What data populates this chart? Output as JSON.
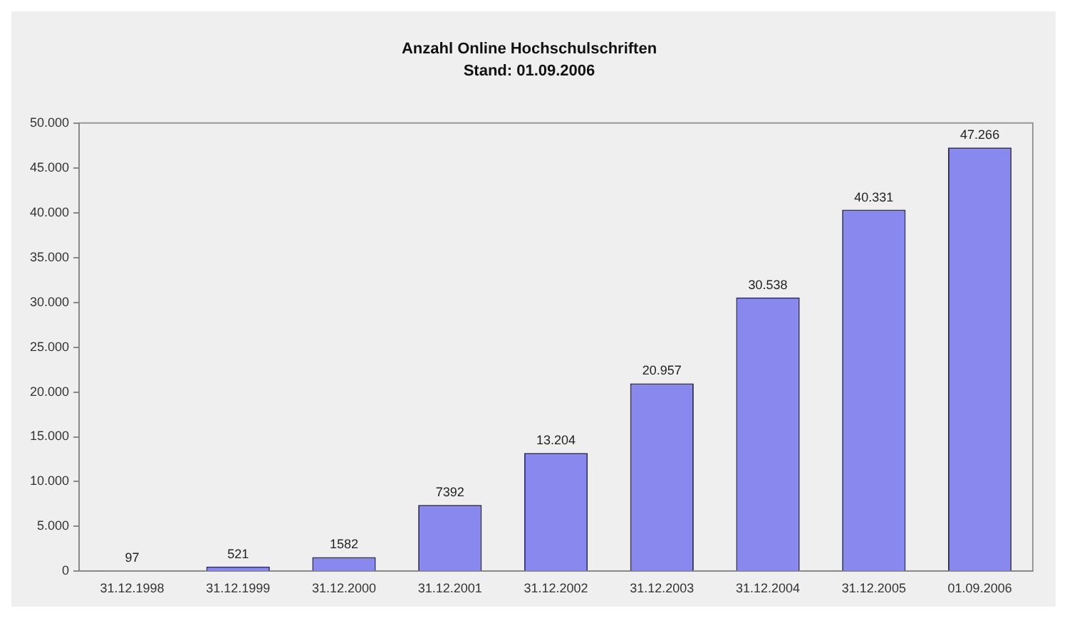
{
  "chart_data": {
    "type": "bar",
    "title": "Anzahl Online Hochschulschriften",
    "subtitle": "Stand: 01.09.2006",
    "categories": [
      "31.12.1998",
      "31.12.1999",
      "31.12.2000",
      "31.12.2001",
      "31.12.2002",
      "31.12.2003",
      "31.12.2004",
      "31.12.2005",
      "01.09.2006"
    ],
    "values": [
      97,
      521,
      1582,
      7392,
      13204,
      20957,
      30538,
      40331,
      47266
    ],
    "value_labels": [
      "97",
      "521",
      "1582",
      "7392",
      "13.204",
      "20.957",
      "30.538",
      "40.331",
      "47.266"
    ],
    "color": "#8888ee",
    "ylim": [
      0,
      50000
    ],
    "yticks": [
      {
        "value": 0,
        "label": "0"
      },
      {
        "value": 5000,
        "label": "5.000"
      },
      {
        "value": 10000,
        "label": "10.000"
      },
      {
        "value": 15000,
        "label": "15.000"
      },
      {
        "value": 20000,
        "label": "20.000"
      },
      {
        "value": 25000,
        "label": "25.000"
      },
      {
        "value": 30000,
        "label": "30.000"
      },
      {
        "value": 35000,
        "label": "35.000"
      },
      {
        "value": 40000,
        "label": "40.000"
      },
      {
        "value": 45000,
        "label": "45.000"
      },
      {
        "value": 50000,
        "label": "50.000"
      }
    ],
    "grid": false,
    "legend": false
  }
}
